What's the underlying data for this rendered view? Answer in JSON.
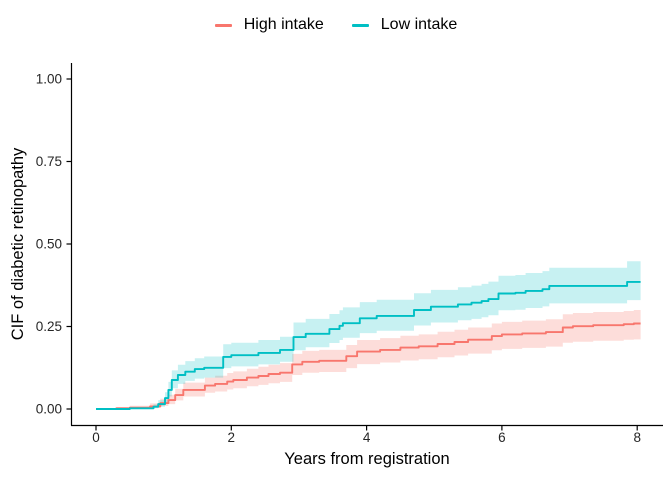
{
  "chart_data": {
    "type": "line",
    "variant": "step-cif-with-confidence-bands",
    "title": "",
    "xlabel": "Years from registration",
    "ylabel": "CIF of diabetic retinopathy",
    "xlim": [
      0,
      8.4
    ],
    "ylim": [
      0,
      1.05
    ],
    "grid": false,
    "legend_position": "top",
    "axis_color": "#000000",
    "tick_text_color": "#262626",
    "x_ticks": {
      "values": [
        0,
        2,
        4,
        6,
        8
      ],
      "labels": [
        "0",
        "2",
        "4",
        "6",
        "8"
      ]
    },
    "y_ticks": {
      "values": [
        0,
        0.25,
        0.5,
        0.75,
        1
      ],
      "labels": [
        "0.00",
        "0.25",
        "0.50",
        "0.75",
        "1.00"
      ]
    },
    "series": [
      {
        "name": "High intake",
        "color": "#F8766D",
        "band_color": "rgba(248,118,109,0.25)",
        "x": [
          0,
          0.3,
          0.5,
          0.8,
          0.95,
          1.07,
          1.17,
          1.29,
          1.61,
          1.76,
          1.94,
          2.03,
          2.23,
          2.4,
          2.55,
          2.72,
          2.9,
          3.05,
          3.3,
          3.7,
          3.86,
          4.2,
          4.5,
          4.77,
          5.05,
          5.3,
          5.5,
          5.85,
          6.0,
          6.3,
          6.65,
          6.9,
          7.05,
          7.35,
          7.8,
          7.95,
          8.05
        ],
        "y": [
          0,
          0.002,
          0.004,
          0.008,
          0.018,
          0.027,
          0.042,
          0.058,
          0.071,
          0.076,
          0.083,
          0.088,
          0.095,
          0.1,
          0.106,
          0.11,
          0.135,
          0.143,
          0.146,
          0.16,
          0.174,
          0.179,
          0.186,
          0.19,
          0.197,
          0.203,
          0.21,
          0.221,
          0.226,
          0.229,
          0.233,
          0.247,
          0.251,
          0.254,
          0.257,
          0.259,
          0.259
        ],
        "lower": [
          0,
          0.0,
          0.001,
          0.003,
          0.009,
          0.015,
          0.026,
          0.038,
          0.049,
          0.053,
          0.059,
          0.063,
          0.069,
          0.073,
          0.078,
          0.082,
          0.103,
          0.11,
          0.112,
          0.124,
          0.136,
          0.141,
          0.147,
          0.151,
          0.157,
          0.162,
          0.168,
          0.178,
          0.182,
          0.185,
          0.189,
          0.201,
          0.204,
          0.207,
          0.21,
          0.211,
          0.211
        ],
        "upper": [
          0,
          0.006,
          0.01,
          0.017,
          0.031,
          0.043,
          0.061,
          0.08,
          0.095,
          0.101,
          0.109,
          0.114,
          0.122,
          0.128,
          0.134,
          0.139,
          0.167,
          0.176,
          0.179,
          0.194,
          0.209,
          0.215,
          0.222,
          0.226,
          0.234,
          0.24,
          0.247,
          0.259,
          0.264,
          0.268,
          0.272,
          0.287,
          0.291,
          0.294,
          0.297,
          0.3,
          0.3
        ]
      },
      {
        "name": "Low intake",
        "color": "#00BFC4",
        "band_color": "rgba(0,191,196,0.22)",
        "x": [
          0,
          0.5,
          0.85,
          0.92,
          1.02,
          1.07,
          1.12,
          1.21,
          1.32,
          1.46,
          1.6,
          1.88,
          2.0,
          2.4,
          2.72,
          2.92,
          3.1,
          3.45,
          3.6,
          3.65,
          3.9,
          4.15,
          4.7,
          4.95,
          5.35,
          5.55,
          5.7,
          5.8,
          5.95,
          6.2,
          6.35,
          6.6,
          6.7,
          7.85,
          8.05
        ],
        "y": [
          0,
          0.002,
          0.007,
          0.015,
          0.033,
          0.058,
          0.088,
          0.103,
          0.113,
          0.121,
          0.125,
          0.158,
          0.163,
          0.17,
          0.179,
          0.218,
          0.228,
          0.242,
          0.252,
          0.26,
          0.275,
          0.282,
          0.3,
          0.31,
          0.317,
          0.322,
          0.327,
          0.333,
          0.35,
          0.352,
          0.358,
          0.363,
          0.373,
          0.385,
          0.385
        ],
        "lower": [
          0,
          0.0,
          0.002,
          0.007,
          0.019,
          0.038,
          0.063,
          0.076,
          0.085,
          0.092,
          0.095,
          0.124,
          0.129,
          0.135,
          0.143,
          0.178,
          0.187,
          0.2,
          0.209,
          0.216,
          0.23,
          0.237,
          0.253,
          0.262,
          0.269,
          0.273,
          0.278,
          0.284,
          0.299,
          0.301,
          0.306,
          0.311,
          0.32,
          0.33,
          0.33
        ],
        "upper": [
          0,
          0.006,
          0.014,
          0.027,
          0.051,
          0.082,
          0.117,
          0.134,
          0.145,
          0.154,
          0.159,
          0.196,
          0.201,
          0.209,
          0.219,
          0.262,
          0.273,
          0.288,
          0.299,
          0.308,
          0.324,
          0.331,
          0.351,
          0.361,
          0.369,
          0.374,
          0.379,
          0.386,
          0.404,
          0.406,
          0.412,
          0.418,
          0.428,
          0.448,
          0.448
        ]
      }
    ]
  }
}
